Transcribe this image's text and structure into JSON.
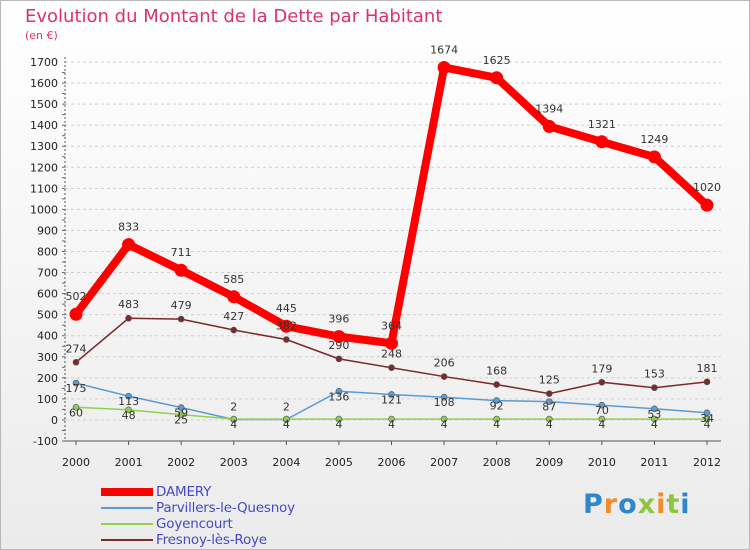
{
  "header": {
    "title": "Evolution du Montant de la Dette par Habitant",
    "subtitle": "(en €)"
  },
  "brand": {
    "text": "Proxiti",
    "colors": [
      "#2f86c8",
      "#f28c28",
      "#2f86c8",
      "#8dc63f",
      "#f28c28",
      "#8dc63f",
      "#2f86c8"
    ]
  },
  "chart_data": {
    "type": "line",
    "title": "Evolution du Montant de la Dette par Habitant",
    "subtitle": "(en €)",
    "xlabel": "",
    "ylabel": "",
    "x": [
      "2000",
      "2001",
      "2002",
      "2003",
      "2004",
      "2005",
      "2006",
      "2007",
      "2008",
      "2009",
      "2010",
      "2011",
      "2012"
    ],
    "ylim": [
      -100,
      1700
    ],
    "yticks": [
      -100,
      0,
      100,
      200,
      300,
      400,
      500,
      600,
      700,
      800,
      900,
      1000,
      1100,
      1200,
      1300,
      1400,
      1500,
      1600,
      1700
    ],
    "grid": "horizontal dashed",
    "legend": "bottom-left",
    "series": [
      {
        "name": "DAMERY",
        "color": "#ff0000",
        "values": [
          502,
          833,
          711,
          585,
          445,
          396,
          364,
          1674,
          1625,
          1394,
          1321,
          1249,
          1020
        ],
        "labels": [
          "502",
          "833",
          "711",
          "585",
          "445",
          "396",
          "364",
          "1674",
          "1625",
          "1394",
          "1321",
          "1249",
          "1020"
        ]
      },
      {
        "name": "Parvillers-le-Quesnoy",
        "color": "#5a9bd4",
        "values": [
          175,
          113,
          59,
          2,
          2,
          136,
          121,
          108,
          92,
          87,
          70,
          53,
          34
        ],
        "labels": [
          "175",
          "113",
          "59",
          "2",
          "2",
          "136",
          "121",
          "108",
          "92",
          "87",
          "70",
          "53",
          "34"
        ]
      },
      {
        "name": "Goyencourt",
        "color": "#90d050",
        "values": [
          60,
          48,
          25,
          4,
          4,
          4,
          4,
          4,
          4,
          4,
          4,
          4,
          4
        ],
        "labels": [
          "60",
          "48",
          "25",
          "4",
          "4",
          "4",
          "4",
          "4",
          "4",
          "4",
          "4",
          "4",
          "4"
        ]
      },
      {
        "name": "Fresnoy-lès-Roye",
        "color": "#7a2a2a",
        "values": [
          274,
          483,
          479,
          427,
          382,
          290,
          248,
          206,
          168,
          125,
          179,
          153,
          181
        ],
        "labels": [
          "274",
          "483",
          "479",
          "427",
          "382",
          "290",
          "248",
          "206",
          "168",
          "125",
          "179",
          "153",
          "181"
        ]
      }
    ]
  }
}
